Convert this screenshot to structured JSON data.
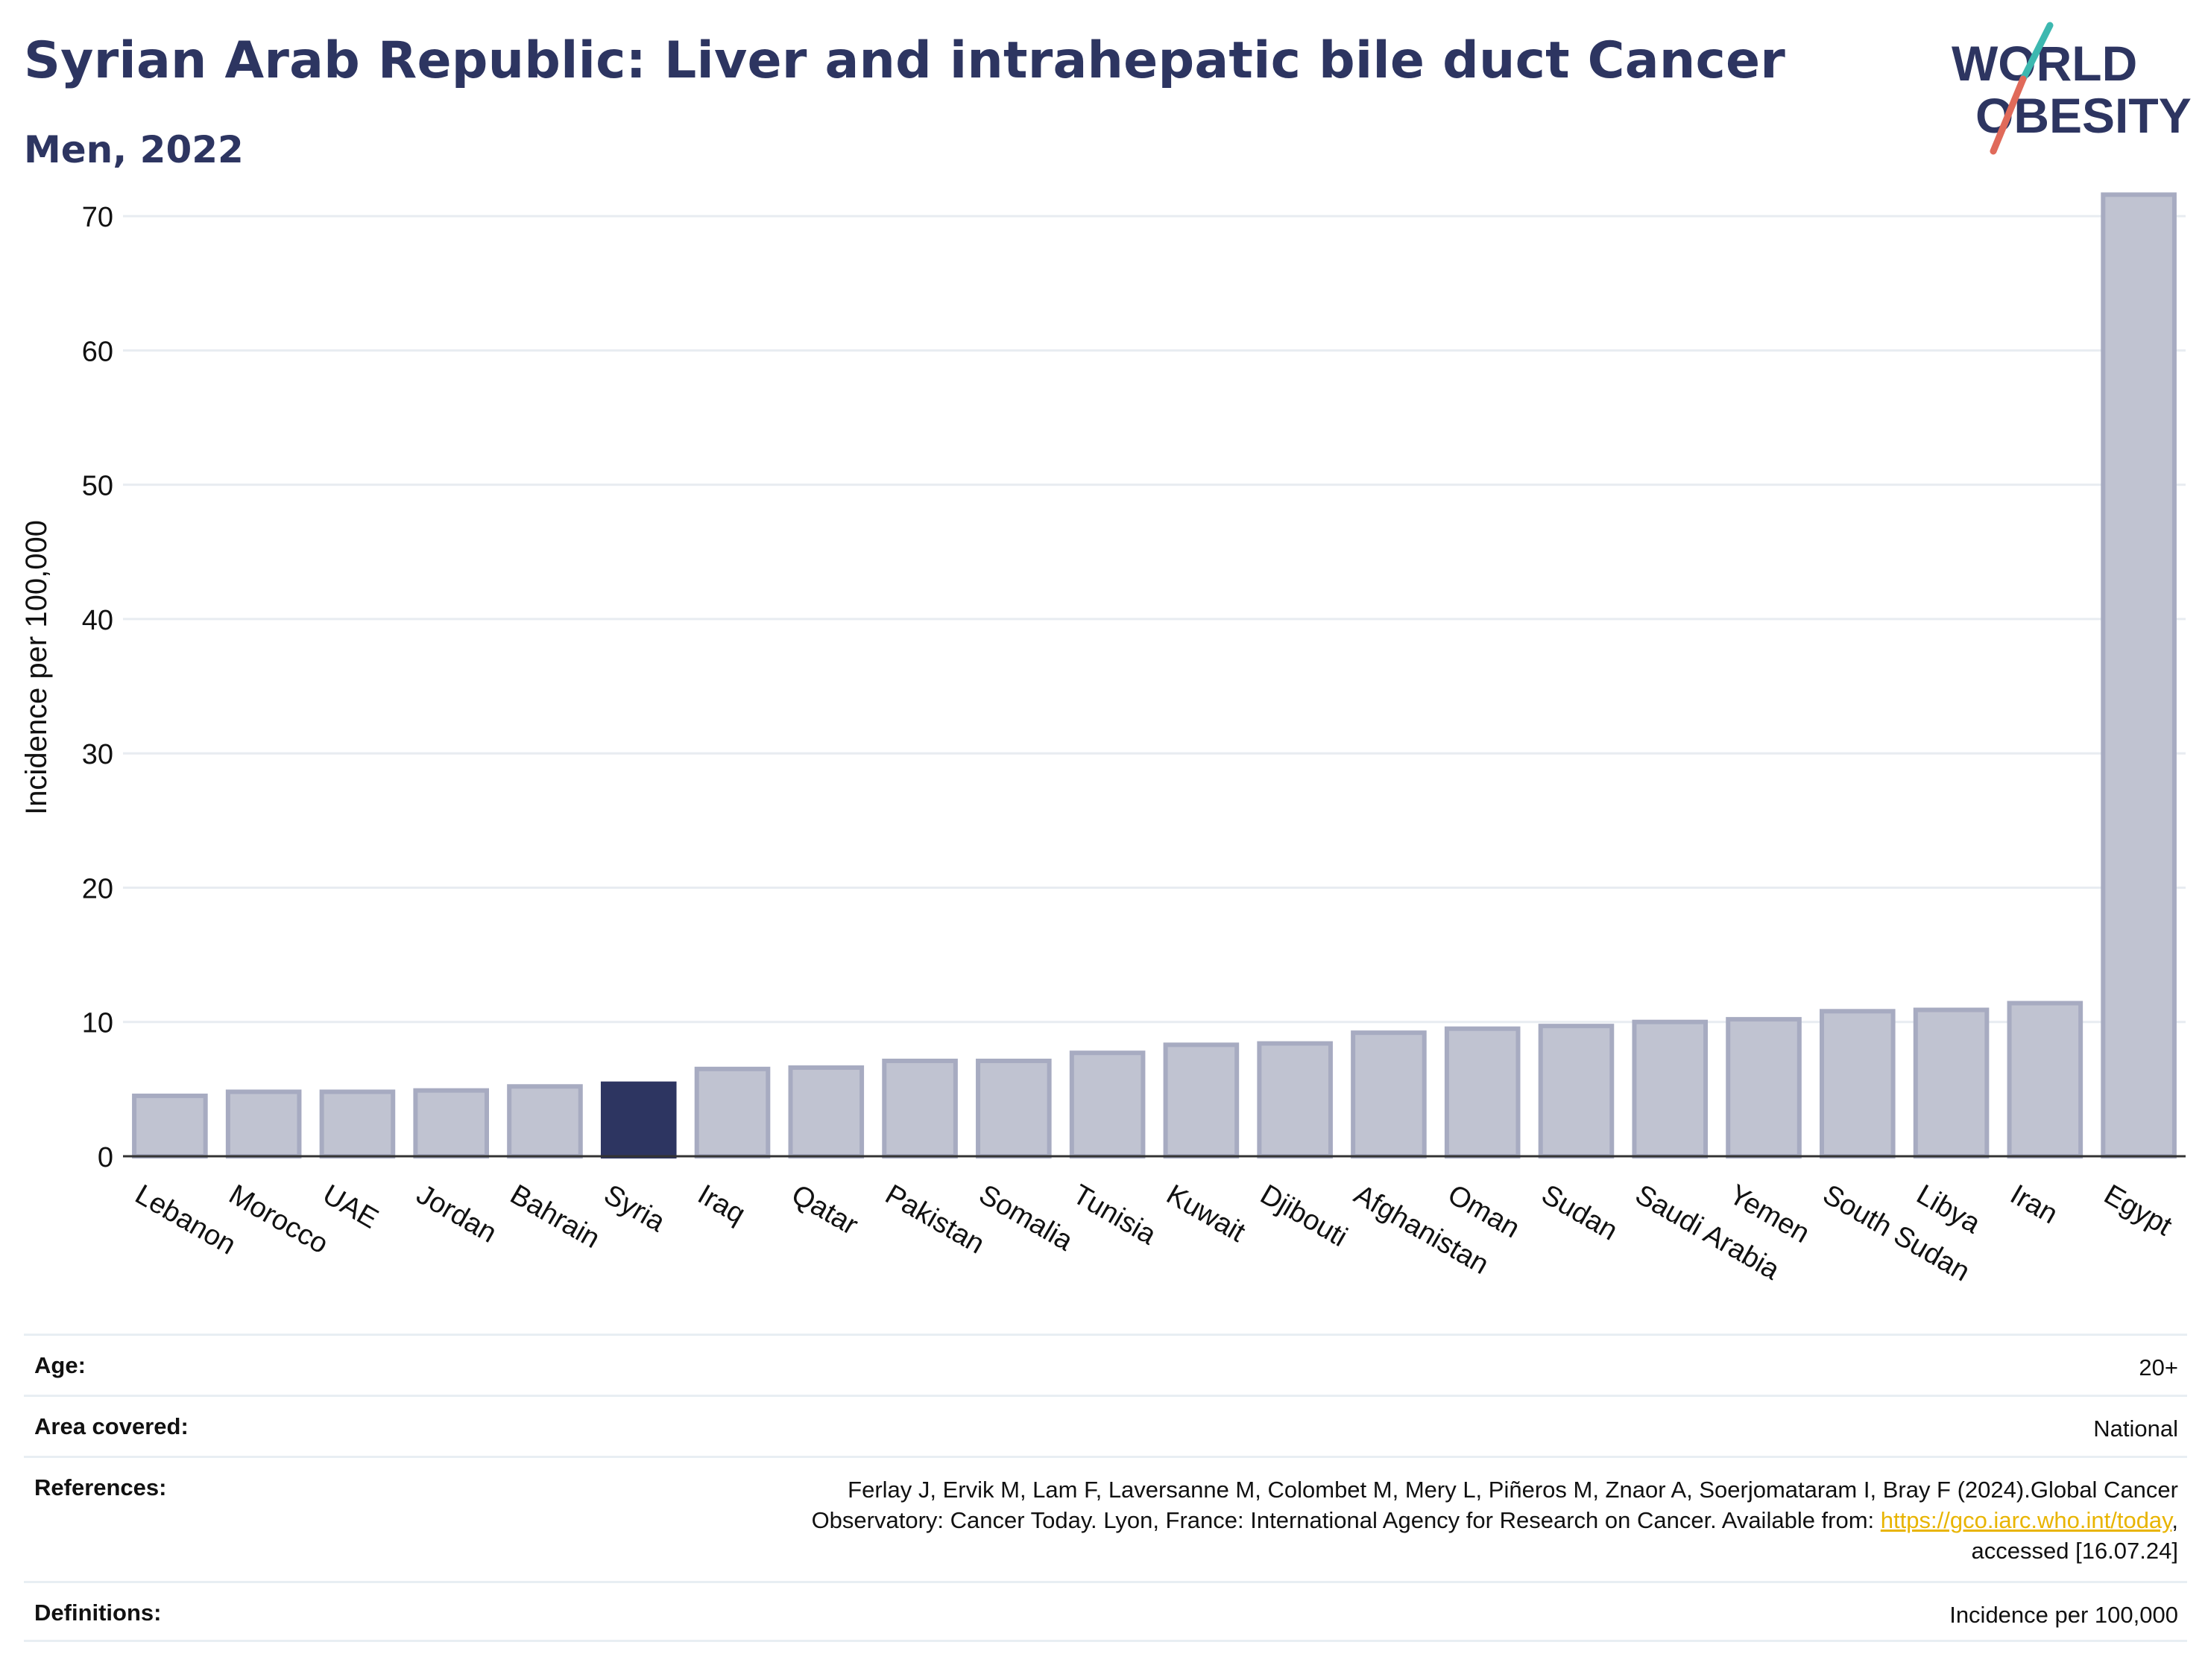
{
  "header": {
    "title": "Syrian Arab Republic: Liver and intrahepatic bile duct Cancer",
    "subtitle": "Men, 2022"
  },
  "logo": {
    "line1": "WORLD",
    "line2": "OBESITY",
    "colors": {
      "text": "#2d3561",
      "slash_teal": "#3db8b0",
      "slash_coral": "#e06a5a"
    }
  },
  "chart_data": {
    "type": "bar",
    "title": "",
    "xlabel": "",
    "ylabel": "Incidence per 100,000",
    "ylim": [
      0,
      75
    ],
    "yticks": [
      0,
      10,
      20,
      30,
      40,
      50,
      60,
      70
    ],
    "grid": true,
    "categories": [
      "Lebanon",
      "Morocco",
      "UAE",
      "Jordan",
      "Bahrain",
      "Syria",
      "Iraq",
      "Qatar",
      "Pakistan",
      "Somalia",
      "Tunisia",
      "Kuwait",
      "Djibouti",
      "Afghanistan",
      "Oman",
      "Sudan",
      "Saudi Arabia",
      "Yemen",
      "South Sudan",
      "Libya",
      "Iran",
      "Egypt"
    ],
    "values": [
      4.5,
      4.8,
      4.8,
      4.9,
      5.2,
      5.4,
      6.5,
      6.6,
      7.1,
      7.1,
      7.7,
      8.3,
      8.4,
      9.2,
      9.5,
      9.7,
      10.0,
      10.2,
      10.8,
      10.9,
      11.4,
      71.6
    ],
    "highlight": "Syria",
    "colors": {
      "bar": "#c0c3d1",
      "bar_edge": "#a7abc1",
      "highlight": "#2d3561",
      "grid": "#e8ecf1",
      "axis": "#333333"
    }
  },
  "meta": {
    "age_label": "Age:",
    "age_value": "20+",
    "area_label": "Area covered:",
    "area_value": "National",
    "references_label": "References:",
    "references_line1": "Ferlay J, Ervik M, Lam F, Laversanne M, Colombet M, Mery L, Piñeros M, Znaor A, Soerjomataram I, Bray F (2024).Global Cancer",
    "references_line2_pre": "Observatory: Cancer Today. Lyon, France: International Agency for Research on Cancer. Available from: ",
    "references_link": "https://gco.iarc.who.int/today",
    "references_line2_post": ",",
    "references_line3": "accessed [16.07.24]",
    "definitions_label": "Definitions:",
    "definitions_value": "Incidence per 100,000"
  }
}
